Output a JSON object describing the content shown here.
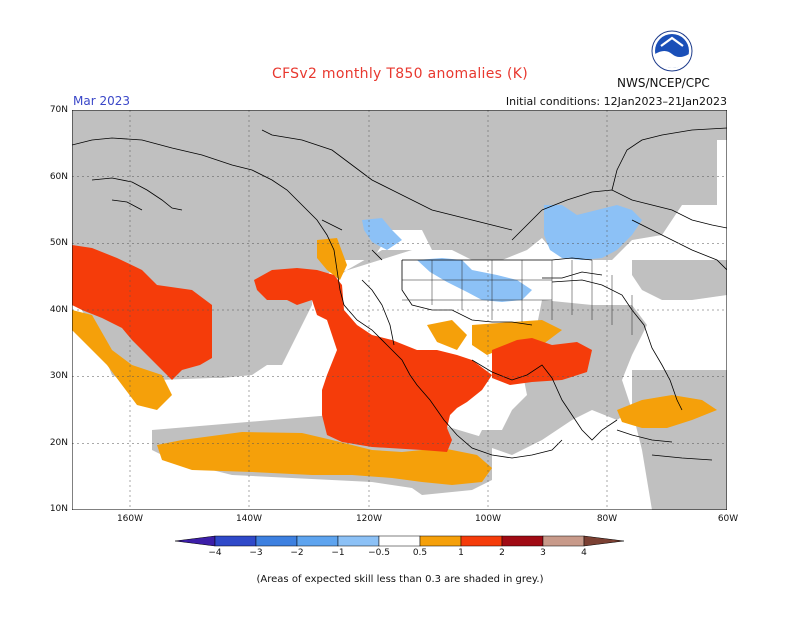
{
  "title": "CFSv2 monthly T850 anomalies (K)",
  "month": "Mar 2023",
  "initial_conditions": "Initial conditions: 12Jan2023–21Jan2023",
  "agency": "NWS/NCEP/CPC",
  "logo_text": "NOAA",
  "footnote": "(Areas of expected skill less than 0.3 are shaded in grey.)",
  "lat_labels": [
    "70N",
    "60N",
    "50N",
    "40N",
    "30N",
    "20N",
    "10N"
  ],
  "lon_labels": [
    "160W",
    "140W",
    "120W",
    "100W",
    "80W",
    "60W"
  ],
  "colorbar": {
    "labels": [
      "−4",
      "−3",
      "−2",
      "−1",
      "−0.5",
      "0.5",
      "1",
      "2",
      "3",
      "4"
    ],
    "colors": [
      "#3c1ea8",
      "#2f49c9",
      "#3d80e0",
      "#5ea4ef",
      "#8cc1f6",
      "#ffffff",
      "#f5a00a",
      "#f53c0a",
      "#a00a14",
      "#c89a8a",
      "#7b4033"
    ]
  },
  "colors": {
    "grey": "#c0c0c0",
    "orange": "#f5a00a",
    "red": "#f53c0a",
    "lightblue": "#8cc1f6"
  }
}
